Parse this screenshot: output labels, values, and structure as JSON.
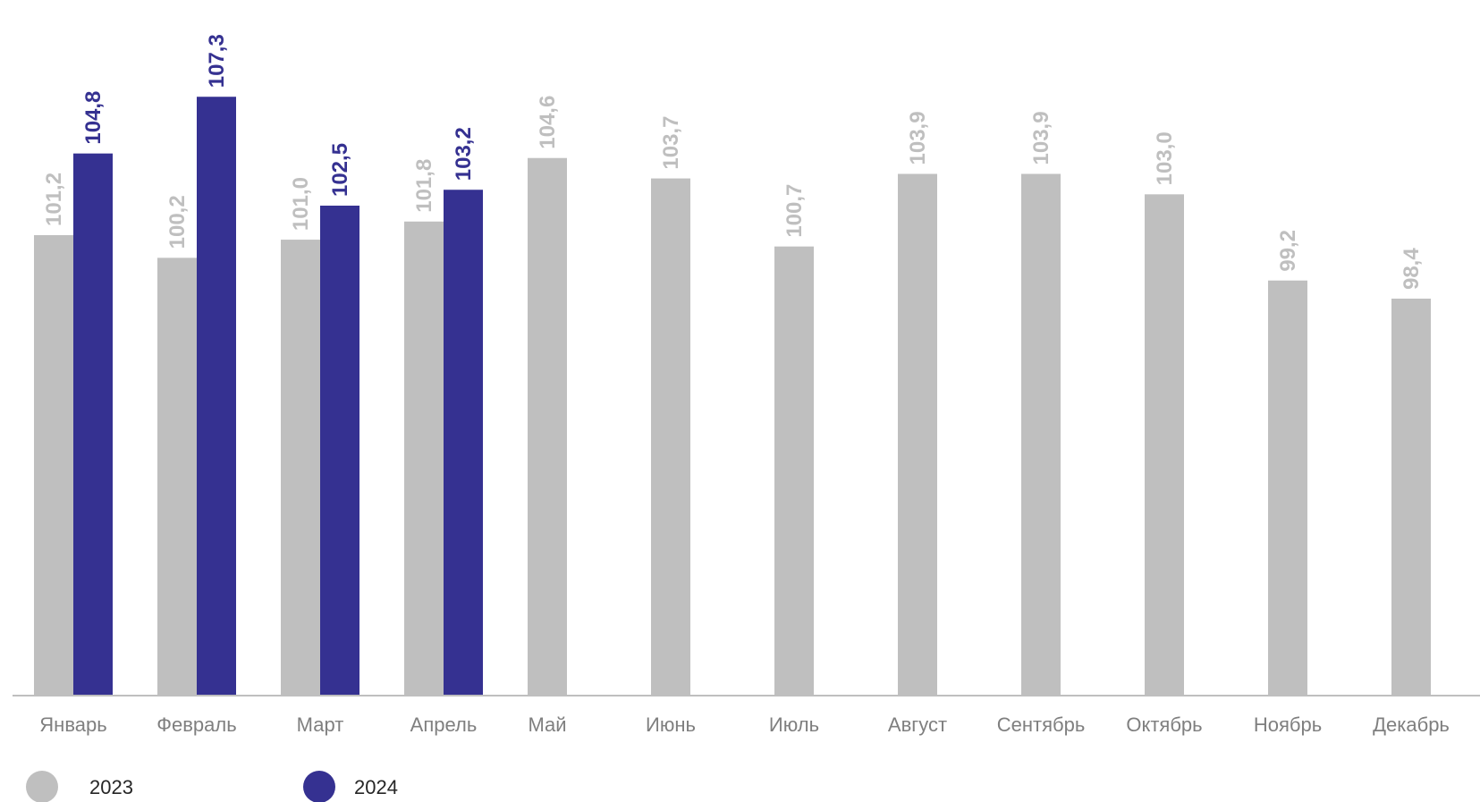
{
  "chart_data": {
    "type": "bar",
    "categories": [
      "Январь",
      "Февраль",
      "Март",
      "Апрель",
      "Май",
      "Июнь",
      "Июль",
      "Август",
      "Сентябрь",
      "Октябрь",
      "Ноябрь",
      "Декабрь"
    ],
    "series": [
      {
        "name": "2023",
        "color": "#bfbfbf",
        "values": [
          101.2,
          100.2,
          101.0,
          101.8,
          104.6,
          103.7,
          100.7,
          103.9,
          103.9,
          103.0,
          99.2,
          98.4
        ],
        "labels": [
          "101,2",
          "100,2",
          "101,0",
          "101,8",
          "104,6",
          "103,7",
          "100,7",
          "103,9",
          "103,9",
          "103,0",
          "99,2",
          "98,4"
        ]
      },
      {
        "name": "2024",
        "color": "#353191",
        "values": [
          104.8,
          107.3,
          102.5,
          103.2,
          null,
          null,
          null,
          null,
          null,
          null,
          null,
          null
        ],
        "labels": [
          "104,8",
          "107,3",
          "102,5",
          "103,2",
          "",
          "",
          "",
          "",
          "",
          "",
          "",
          ""
        ]
      }
    ],
    "title": "",
    "xlabel": "",
    "ylabel": "",
    "ylim": [
      80.9,
      108
    ],
    "grid": false,
    "legend_position": "bottom-left",
    "axis_color": "#bfbfbf",
    "label_text_color": "#7f7f7f"
  }
}
